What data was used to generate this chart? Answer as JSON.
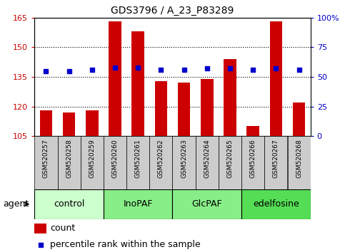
{
  "title": "GDS3796 / A_23_P83289",
  "samples": [
    "GSM520257",
    "GSM520258",
    "GSM520259",
    "GSM520260",
    "GSM520261",
    "GSM520262",
    "GSM520263",
    "GSM520264",
    "GSM520265",
    "GSM520266",
    "GSM520267",
    "GSM520268"
  ],
  "bar_values": [
    118,
    117,
    118,
    163,
    158,
    133,
    132,
    134,
    144,
    110,
    163,
    122
  ],
  "percentile_values": [
    55,
    55,
    56,
    58,
    58,
    56,
    56,
    57,
    57,
    56,
    57,
    56
  ],
  "bar_color": "#cc0000",
  "percentile_color": "#0000cc",
  "ylim_left": [
    105,
    165
  ],
  "ylim_right": [
    0,
    100
  ],
  "yticks_left": [
    105,
    120,
    135,
    150,
    165
  ],
  "yticks_right": [
    0,
    25,
    50,
    75,
    100
  ],
  "ytick_labels_right": [
    "0",
    "25",
    "50",
    "75",
    "100%"
  ],
  "groups": [
    {
      "label": "control",
      "start": 0,
      "end": 3,
      "color": "#ccffcc"
    },
    {
      "label": "InoPAF",
      "start": 3,
      "end": 6,
      "color": "#88ee88"
    },
    {
      "label": "GlcPAF",
      "start": 6,
      "end": 9,
      "color": "#88ee88"
    },
    {
      "label": "edelfosine",
      "start": 9,
      "end": 12,
      "color": "#55dd55"
    }
  ],
  "agent_label": "agent",
  "legend_count_label": "count",
  "legend_percentile_label": "percentile rank within the sample",
  "background_color": "#ffffff",
  "tick_label_color_left": "#cc0000",
  "tick_label_color_right": "#0000cc",
  "bar_width": 0.55,
  "x_tick_bg_color": "#cccccc"
}
